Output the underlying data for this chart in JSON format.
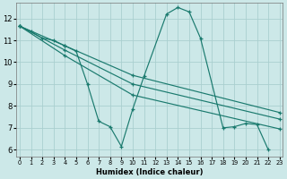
{
  "xlabel": "Humidex (Indice chaleur)",
  "bg_color": "#cce8e8",
  "grid_color": "#aacfcf",
  "line_color": "#1a7a6e",
  "yticks": [
    6,
    7,
    8,
    9,
    10,
    11,
    12
  ],
  "xticks": [
    0,
    1,
    2,
    3,
    4,
    5,
    6,
    7,
    8,
    9,
    10,
    11,
    12,
    13,
    14,
    15,
    16,
    17,
    18,
    19,
    20,
    21,
    22,
    23
  ],
  "xlim": [
    -0.3,
    23.3
  ],
  "ylim": [
    5.7,
    12.7
  ],
  "lines": [
    {
      "x": [
        0,
        1,
        2,
        3,
        4,
        5,
        6,
        7,
        8,
        9,
        10,
        11,
        13,
        14,
        15,
        16,
        18,
        19,
        20,
        21,
        22
      ],
      "y": [
        11.65,
        11.4,
        11.1,
        11.0,
        10.75,
        10.5,
        9.0,
        7.3,
        7.05,
        6.15,
        7.85,
        9.35,
        12.2,
        12.5,
        12.3,
        11.1,
        7.0,
        7.05,
        7.2,
        7.15,
        6.0
      ]
    },
    {
      "x": [
        0,
        4,
        10,
        23
      ],
      "y": [
        11.65,
        10.75,
        9.4,
        7.7
      ]
    },
    {
      "x": [
        0,
        4,
        10,
        23
      ],
      "y": [
        11.65,
        10.55,
        9.0,
        7.4
      ]
    },
    {
      "x": [
        0,
        4,
        10,
        23
      ],
      "y": [
        11.65,
        10.3,
        8.5,
        6.95
      ]
    }
  ]
}
